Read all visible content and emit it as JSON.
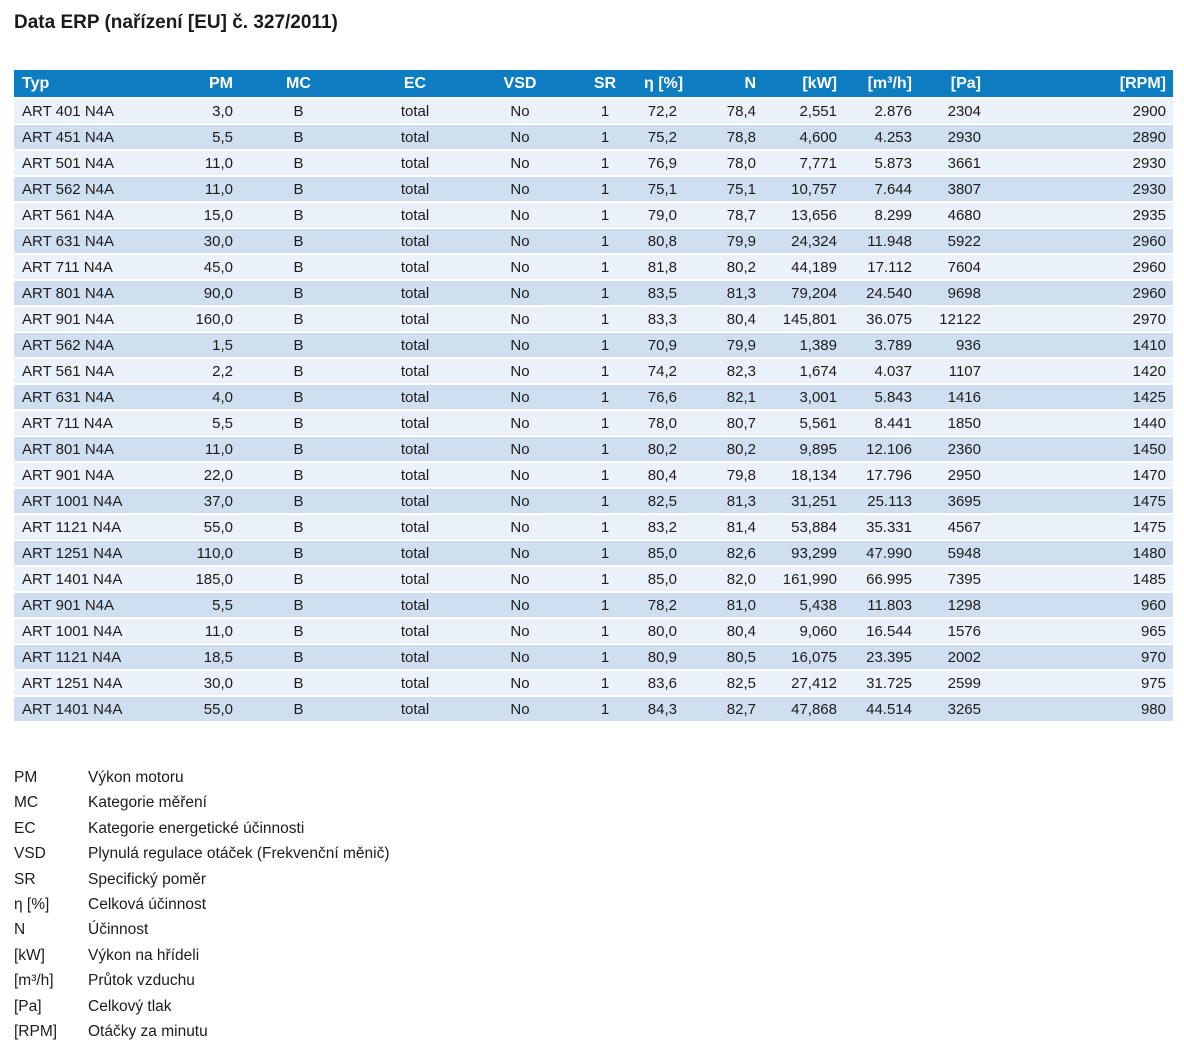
{
  "title": "Data ERP (nařízení [EU] č. 327/2011)",
  "colors": {
    "header_bg": "#0E7CC1",
    "header_text": "#FFFFFF",
    "row_light": "#EAF1F9",
    "row_dark": "#CFDFF0",
    "text": "#1C1C1C"
  },
  "table": {
    "columns": [
      {
        "key": "typ",
        "label": "Typ",
        "align": "left"
      },
      {
        "key": "pm",
        "label": "PM",
        "align": "right"
      },
      {
        "key": "mc",
        "label": "MC",
        "align": "center"
      },
      {
        "key": "ec",
        "label": "EC",
        "align": "center"
      },
      {
        "key": "vsd",
        "label": "VSD",
        "align": "center"
      },
      {
        "key": "sr",
        "label": "SR",
        "align": "center"
      },
      {
        "key": "eta",
        "label": "η [%]",
        "align": "right"
      },
      {
        "key": "n",
        "label": "N",
        "align": "right"
      },
      {
        "key": "kw",
        "label": "[kW]",
        "align": "right"
      },
      {
        "key": "m3h",
        "label": "[m³/h]",
        "align": "right"
      },
      {
        "key": "pa",
        "label": "[Pa]",
        "align": "right"
      },
      {
        "key": "rpm",
        "label": "[RPM]",
        "align": "right"
      }
    ],
    "rows": [
      [
        "ART 401 N4A",
        "3,0",
        "B",
        "total",
        "No",
        "1",
        "72,2",
        "78,4",
        "2,551",
        "2.876",
        "2304",
        "2900"
      ],
      [
        "ART 451 N4A",
        "5,5",
        "B",
        "total",
        "No",
        "1",
        "75,2",
        "78,8",
        "4,600",
        "4.253",
        "2930",
        "2890"
      ],
      [
        "ART 501 N4A",
        "11,0",
        "B",
        "total",
        "No",
        "1",
        "76,9",
        "78,0",
        "7,771",
        "5.873",
        "3661",
        "2930"
      ],
      [
        "ART 562 N4A",
        "11,0",
        "B",
        "total",
        "No",
        "1",
        "75,1",
        "75,1",
        "10,757",
        "7.644",
        "3807",
        "2930"
      ],
      [
        "ART 561 N4A",
        "15,0",
        "B",
        "total",
        "No",
        "1",
        "79,0",
        "78,7",
        "13,656",
        "8.299",
        "4680",
        "2935"
      ],
      [
        "ART 631 N4A",
        "30,0",
        "B",
        "total",
        "No",
        "1",
        "80,8",
        "79,9",
        "24,324",
        "11.948",
        "5922",
        "2960"
      ],
      [
        "ART 711 N4A",
        "45,0",
        "B",
        "total",
        "No",
        "1",
        "81,8",
        "80,2",
        "44,189",
        "17.112",
        "7604",
        "2960"
      ],
      [
        "ART 801 N4A",
        "90,0",
        "B",
        "total",
        "No",
        "1",
        "83,5",
        "81,3",
        "79,204",
        "24.540",
        "9698",
        "2960"
      ],
      [
        "ART 901 N4A",
        "160,0",
        "B",
        "total",
        "No",
        "1",
        "83,3",
        "80,4",
        "145,801",
        "36.075",
        "12122",
        "2970"
      ],
      [
        "ART 562 N4A",
        "1,5",
        "B",
        "total",
        "No",
        "1",
        "70,9",
        "79,9",
        "1,389",
        "3.789",
        "936",
        "1410"
      ],
      [
        "ART 561 N4A",
        "2,2",
        "B",
        "total",
        "No",
        "1",
        "74,2",
        "82,3",
        "1,674",
        "4.037",
        "1107",
        "1420"
      ],
      [
        "ART 631 N4A",
        "4,0",
        "B",
        "total",
        "No",
        "1",
        "76,6",
        "82,1",
        "3,001",
        "5.843",
        "1416",
        "1425"
      ],
      [
        "ART 711 N4A",
        "5,5",
        "B",
        "total",
        "No",
        "1",
        "78,0",
        "80,7",
        "5,561",
        "8.441",
        "1850",
        "1440"
      ],
      [
        "ART 801 N4A",
        "11,0",
        "B",
        "total",
        "No",
        "1",
        "80,2",
        "80,2",
        "9,895",
        "12.106",
        "2360",
        "1450"
      ],
      [
        "ART 901 N4A",
        "22,0",
        "B",
        "total",
        "No",
        "1",
        "80,4",
        "79,8",
        "18,134",
        "17.796",
        "2950",
        "1470"
      ],
      [
        "ART 1001 N4A",
        "37,0",
        "B",
        "total",
        "No",
        "1",
        "82,5",
        "81,3",
        "31,251",
        "25.113",
        "3695",
        "1475"
      ],
      [
        "ART 1121 N4A",
        "55,0",
        "B",
        "total",
        "No",
        "1",
        "83,2",
        "81,4",
        "53,884",
        "35.331",
        "4567",
        "1475"
      ],
      [
        "ART 1251 N4A",
        "110,0",
        "B",
        "total",
        "No",
        "1",
        "85,0",
        "82,6",
        "93,299",
        "47.990",
        "5948",
        "1480"
      ],
      [
        "ART 1401 N4A",
        "185,0",
        "B",
        "total",
        "No",
        "1",
        "85,0",
        "82,0",
        "161,990",
        "66.995",
        "7395",
        "1485"
      ],
      [
        "ART 901 N4A",
        "5,5",
        "B",
        "total",
        "No",
        "1",
        "78,2",
        "81,0",
        "5,438",
        "11.803",
        "1298",
        "960"
      ],
      [
        "ART 1001 N4A",
        "11,0",
        "B",
        "total",
        "No",
        "1",
        "80,0",
        "80,4",
        "9,060",
        "16.544",
        "1576",
        "965"
      ],
      [
        "ART 1121 N4A",
        "18,5",
        "B",
        "total",
        "No",
        "1",
        "80,9",
        "80,5",
        "16,075",
        "23.395",
        "2002",
        "970"
      ],
      [
        "ART 1251 N4A",
        "30,0",
        "B",
        "total",
        "No",
        "1",
        "83,6",
        "82,5",
        "27,412",
        "31.725",
        "2599",
        "975"
      ],
      [
        "ART 1401 N4A",
        "55,0",
        "B",
        "total",
        "No",
        "1",
        "84,3",
        "82,7",
        "47,868",
        "44.514",
        "3265",
        "980"
      ]
    ]
  },
  "legend": {
    "items": [
      {
        "abbr": "PM",
        "desc": "Výkon motoru"
      },
      {
        "abbr": "MC",
        "desc": "Kategorie měření"
      },
      {
        "abbr": "EC",
        "desc": "Kategorie energetické účinnosti"
      },
      {
        "abbr": "VSD",
        "desc": "Plynulá regulace otáček (Frekvenční měnič)"
      },
      {
        "abbr": "SR",
        "desc": "Specifický poměr"
      },
      {
        "abbr": "η [%]",
        "desc": "Celková účinnost"
      },
      {
        "abbr": "N",
        "desc": "Účinnost"
      },
      {
        "abbr": "[kW]",
        "desc": "Výkon na hřídeli"
      },
      {
        "abbr": "[m³/h]",
        "desc": "Průtok vzduchu"
      },
      {
        "abbr": "[Pa]",
        "desc": "Celkový tlak"
      },
      {
        "abbr": "[RPM]",
        "desc": "Otáčky za minutu"
      }
    ]
  }
}
